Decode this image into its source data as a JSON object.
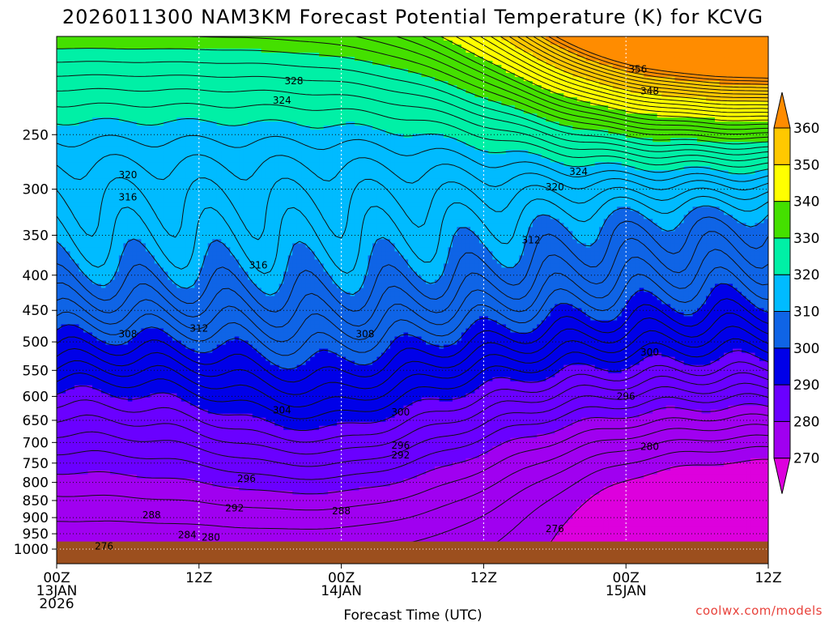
{
  "chart_data": {
    "type": "contour",
    "title": "2026011300 NAM3KM Forecast Potential Temperature (K) for KCVG",
    "xlabel": "Forecast Time (UTC)",
    "ylabel": "",
    "credit": "coolwx.com/models",
    "x_hours_range": [
      0,
      60
    ],
    "x_ticks": [
      {
        "hour": 0,
        "lines": [
          "00Z",
          "13JAN",
          "2026"
        ]
      },
      {
        "hour": 12,
        "lines": [
          "12Z"
        ]
      },
      {
        "hour": 24,
        "lines": [
          "00Z",
          "14JAN"
        ]
      },
      {
        "hour": 36,
        "lines": [
          "12Z"
        ]
      },
      {
        "hour": 48,
        "lines": [
          "00Z",
          "15JAN"
        ]
      },
      {
        "hour": 60,
        "lines": [
          "12Z"
        ]
      }
    ],
    "y_pressure_range_hpa": [
      1050,
      180
    ],
    "y_ticks": [
      "250",
      "300",
      "350",
      "400",
      "450",
      "500",
      "550",
      "600",
      "650",
      "700",
      "750",
      "800",
      "850",
      "900",
      "950",
      "1000"
    ],
    "surface_pressure_hpa": 975,
    "colorbar": {
      "levels": [
        270,
        280,
        290,
        300,
        310,
        320,
        330,
        340,
        350,
        360
      ],
      "labels": [
        "270",
        "280",
        "290",
        "300",
        "310",
        "320",
        "330",
        "340",
        "350",
        "360"
      ],
      "colors": [
        "#dd00dd",
        "#a000f0",
        "#6a00ff",
        "#0000e8",
        "#0f64e6",
        "#00bbff",
        "#00f0a6",
        "#44e000",
        "#ffff00",
        "#ffc800",
        "#ff8c00"
      ]
    },
    "contour_interval_k": 2,
    "contour_labels": [
      {
        "text": "276",
        "hour": 4,
        "hpa": 990
      },
      {
        "text": "280",
        "hour": 13,
        "hpa": 962
      },
      {
        "text": "284",
        "hour": 11,
        "hpa": 954
      },
      {
        "text": "288",
        "hour": 8,
        "hpa": 892
      },
      {
        "text": "292",
        "hour": 15,
        "hpa": 872
      },
      {
        "text": "296",
        "hour": 16,
        "hpa": 790
      },
      {
        "text": "300",
        "hour": 50,
        "hpa": 518
      },
      {
        "text": "304",
        "hour": 19,
        "hpa": 628
      },
      {
        "text": "308",
        "hour": 6,
        "hpa": 487
      },
      {
        "text": "312",
        "hour": 12,
        "hpa": 478
      },
      {
        "text": "316",
        "hour": 17,
        "hpa": 387
      },
      {
        "text": "320",
        "hour": 6,
        "hpa": 286
      },
      {
        "text": "324",
        "hour": 19,
        "hpa": 223
      },
      {
        "text": "328",
        "hour": 20,
        "hpa": 209
      },
      {
        "text": "296",
        "hour": 48,
        "hpa": 600
      },
      {
        "text": "300",
        "hour": 29,
        "hpa": 633
      },
      {
        "text": "296",
        "hour": 29,
        "hpa": 707
      },
      {
        "text": "292",
        "hour": 29,
        "hpa": 730
      },
      {
        "text": "288",
        "hour": 24,
        "hpa": 880
      },
      {
        "text": "280",
        "hour": 50,
        "hpa": 710
      },
      {
        "text": "276",
        "hour": 42,
        "hpa": 935
      },
      {
        "text": "308",
        "hour": 26,
        "hpa": 487
      },
      {
        "text": "316",
        "hour": 6,
        "hpa": 308
      },
      {
        "text": "312",
        "hour": 40,
        "hpa": 356
      },
      {
        "text": "320",
        "hour": 42,
        "hpa": 298
      },
      {
        "text": "324",
        "hour": 44,
        "hpa": 283
      },
      {
        "text": "348",
        "hour": 50,
        "hpa": 216
      },
      {
        "text": "356",
        "hour": 49,
        "hpa": 201
      }
    ]
  }
}
